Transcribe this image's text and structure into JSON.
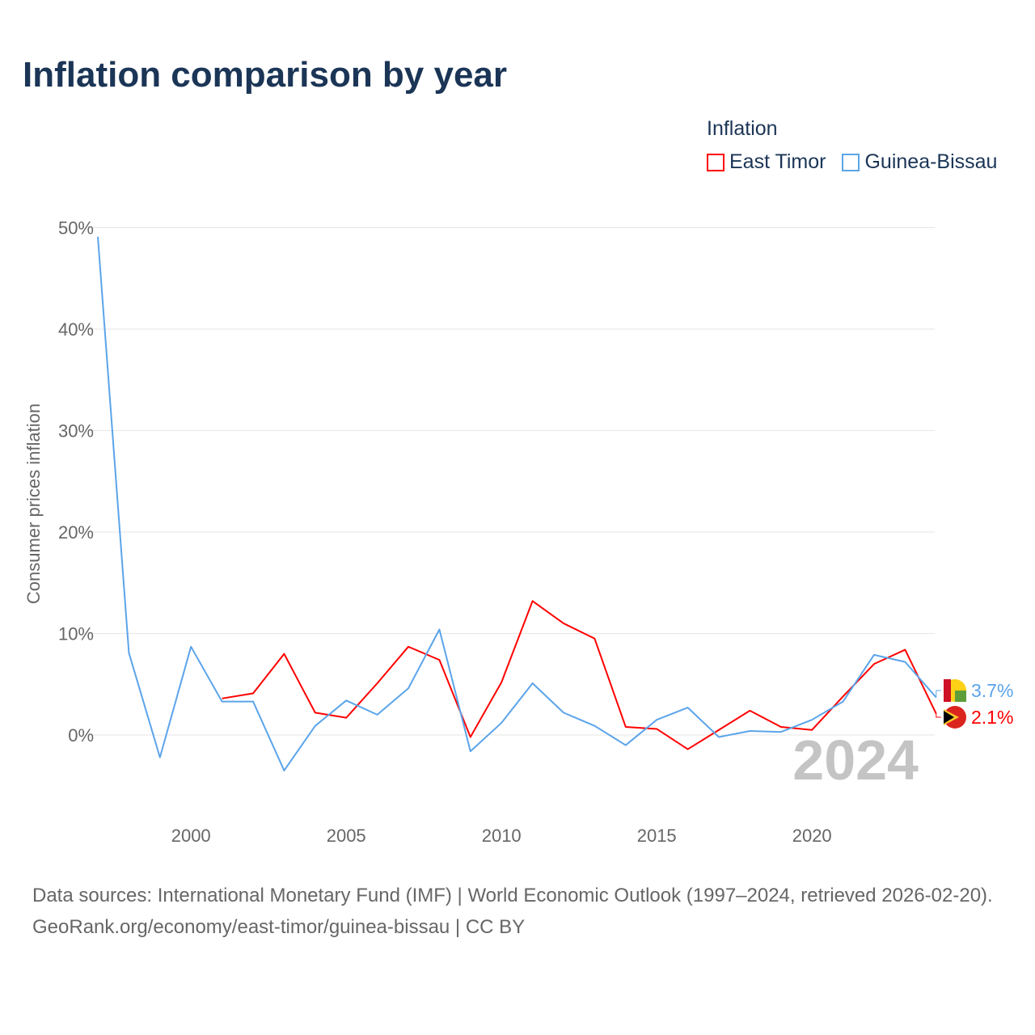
{
  "title": "Inflation comparison by year",
  "legend": {
    "title": "Inflation",
    "items": [
      "East Timor",
      "Guinea-Bissau"
    ]
  },
  "footer": {
    "source": "Data sources: International Monetary Fund (IMF) | World Economic Outlook (1997–2024, retrieved 2026-02-20).",
    "link": "GeoRank.org/economy/east-timor/guinea-bissau | CC BY"
  },
  "chart_data": {
    "type": "line",
    "title": "Inflation comparison by year",
    "ylabel": "Consumer prices inflation",
    "ylim": [
      -8,
      50
    ],
    "xlim": [
      1997,
      2024
    ],
    "yticks": [
      0,
      10,
      20,
      30,
      40,
      50
    ],
    "ytick_labels": [
      "0%",
      "10%",
      "20%",
      "30%",
      "40%",
      "50%"
    ],
    "xticks": [
      2000,
      2005,
      2010,
      2015,
      2020
    ],
    "xtick_labels": [
      "2000",
      "2005",
      "2010",
      "2015",
      "2020"
    ],
    "year_watermark": "2024",
    "series": [
      {
        "name": "East Timor",
        "color": "#ff0000",
        "end_label": "2.1%",
        "x": [
          2001,
          2002,
          2003,
          2004,
          2005,
          2006,
          2007,
          2008,
          2009,
          2010,
          2011,
          2012,
          2013,
          2014,
          2015,
          2016,
          2017,
          2018,
          2019,
          2020,
          2021,
          2022,
          2023,
          2024
        ],
        "values": [
          3.6,
          4.1,
          8.0,
          2.2,
          1.7,
          5.1,
          8.7,
          7.4,
          -0.2,
          5.2,
          13.2,
          11.0,
          9.5,
          0.8,
          0.6,
          -1.4,
          0.5,
          2.4,
          0.8,
          0.5,
          3.8,
          7.0,
          8.4,
          2.1
        ]
      },
      {
        "name": "Guinea-Bissau",
        "color": "#5ba4ea",
        "end_label": "3.7%",
        "x": [
          1997,
          1998,
          1999,
          2000,
          2001,
          2002,
          2003,
          2004,
          2005,
          2006,
          2007,
          2008,
          2009,
          2010,
          2011,
          2012,
          2013,
          2014,
          2015,
          2016,
          2017,
          2018,
          2019,
          2020,
          2021,
          2022,
          2023,
          2024
        ],
        "values": [
          49.1,
          8.1,
          -2.2,
          8.7,
          3.3,
          3.3,
          -3.5,
          0.9,
          3.4,
          2.0,
          4.6,
          10.4,
          -1.6,
          1.2,
          5.1,
          2.2,
          0.9,
          -1.0,
          1.5,
          2.7,
          -0.2,
          0.4,
          0.3,
          1.5,
          3.3,
          7.9,
          7.2,
          3.7
        ]
      }
    ]
  }
}
